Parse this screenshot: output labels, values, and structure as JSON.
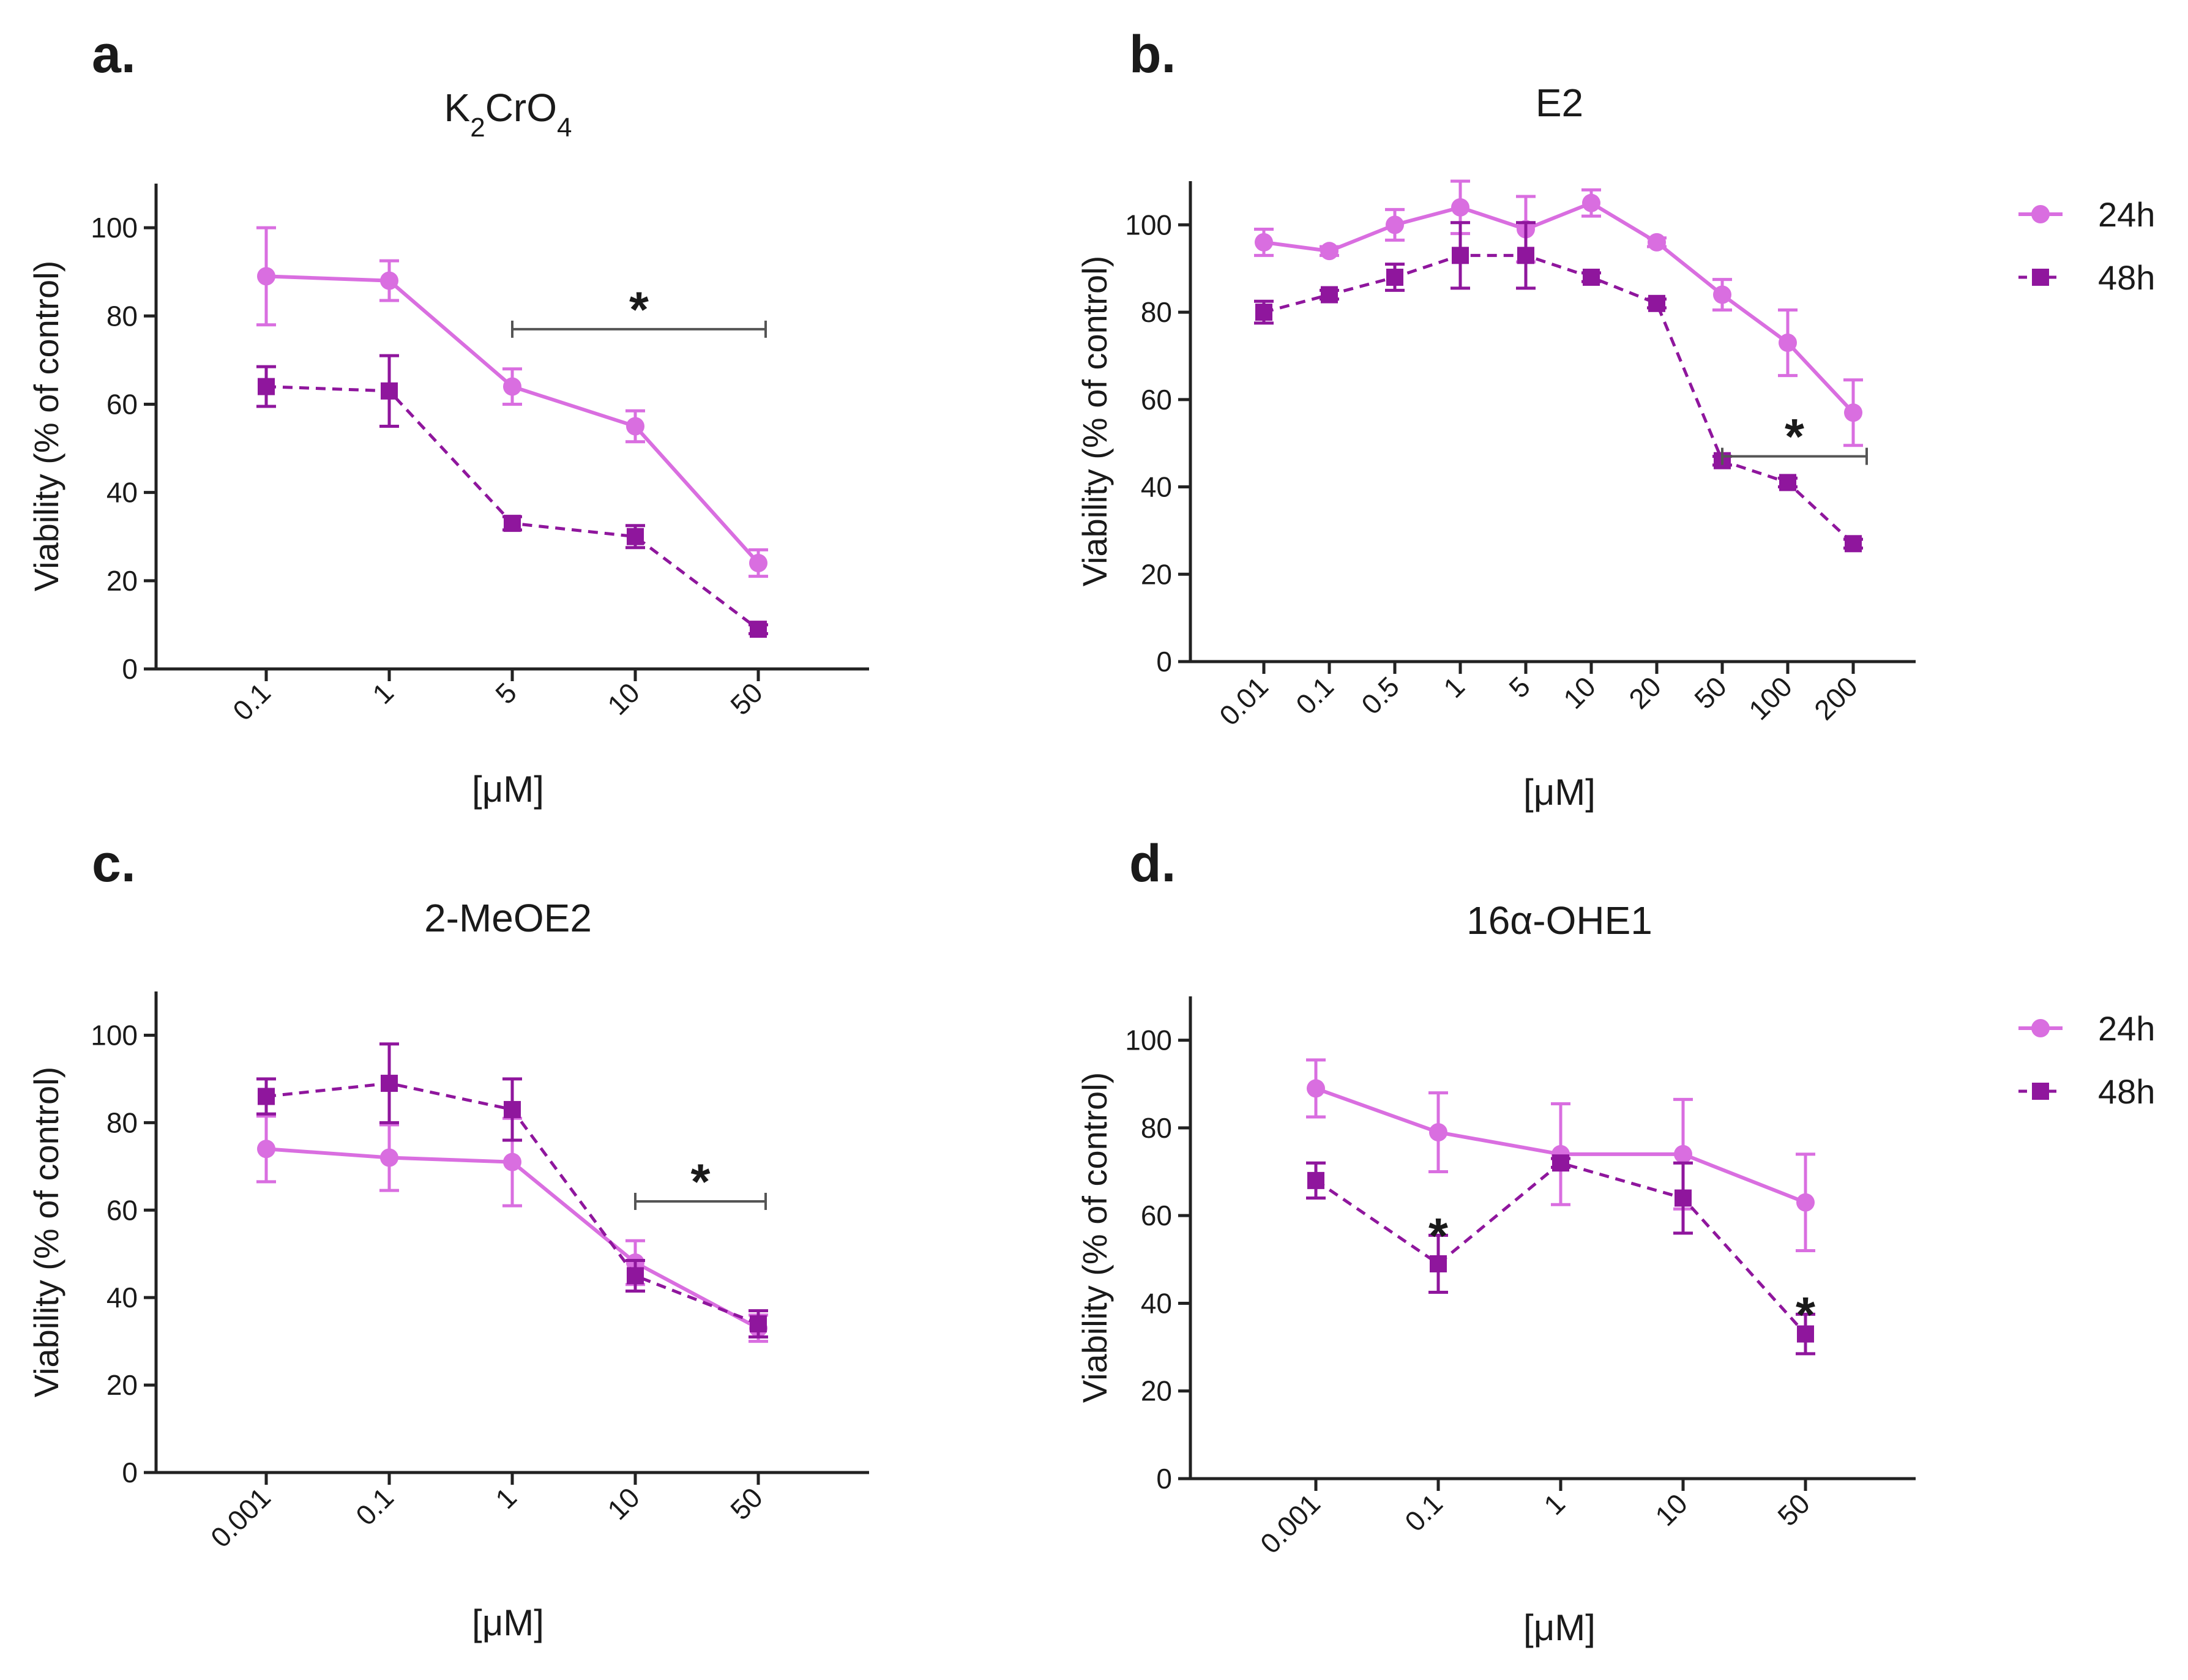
{
  "colors": {
    "h24": "#d96ee0",
    "h48": "#8f169d",
    "axis": "#222222",
    "bracket": "#555555"
  },
  "legend": {
    "h24": "24h",
    "h48": "48h"
  },
  "chart_data": [
    {
      "type": "line",
      "panel_label": "a.",
      "title": "K₂CrO₄",
      "title_parts": {
        "pre": "K",
        "sub1": "2",
        "mid": "CrO",
        "sub2": "4"
      },
      "xlabel": "[μM]",
      "ylabel": "Viability (% of control)",
      "ylim": [
        0,
        110
      ],
      "yticks": [
        0,
        20,
        40,
        60,
        80,
        100
      ],
      "categories": [
        "0.1",
        "1",
        "5",
        "10",
        "50"
      ],
      "series": [
        {
          "name": "24h",
          "values": [
            89,
            88,
            64,
            55,
            24
          ],
          "errors": [
            11,
            4.5,
            4,
            3.5,
            3
          ]
        },
        {
          "name": "48h",
          "values": [
            64,
            63,
            33,
            30,
            9
          ],
          "errors": [
            4.5,
            8,
            1.5,
            2.5,
            1
          ]
        }
      ],
      "significance": [
        {
          "type": "bracket",
          "label": "*",
          "from": "5",
          "to": "50",
          "y": 77
        }
      ]
    },
    {
      "type": "line",
      "panel_label": "b.",
      "title": "E2",
      "xlabel": "[μM]",
      "ylabel": "Viability (% of control)",
      "ylim": [
        0,
        110
      ],
      "yticks": [
        0,
        20,
        40,
        60,
        80,
        100
      ],
      "categories": [
        "0.01",
        "0.1",
        "0.5",
        "1",
        "5",
        "10",
        "20",
        "50",
        "100",
        "200"
      ],
      "series": [
        {
          "name": "24h",
          "values": [
            96,
            94,
            100,
            104,
            99,
            105,
            96,
            84,
            73,
            57
          ],
          "errors": [
            3,
            1,
            3.5,
            6,
            7.5,
            3,
            1,
            3.5,
            7.5,
            7.5
          ]
        },
        {
          "name": "48h",
          "values": [
            80,
            84,
            88,
            93,
            93,
            88,
            82,
            46,
            41,
            27
          ],
          "errors": [
            2.5,
            1,
            3,
            7.5,
            7.5,
            1,
            1,
            1,
            1,
            1
          ]
        }
      ],
      "significance": [
        {
          "type": "bracket",
          "label": "*",
          "from": "50",
          "to": "200",
          "y": 47
        }
      ]
    },
    {
      "type": "line",
      "panel_label": "c.",
      "title": "2-MeOE2",
      "xlabel": "[μM]",
      "ylabel": "Viability (% of control)",
      "ylim": [
        0,
        110
      ],
      "yticks": [
        0,
        20,
        40,
        60,
        80,
        100
      ],
      "categories": [
        "0.001",
        "0.1",
        "1",
        "10",
        "50"
      ],
      "series": [
        {
          "name": "24h",
          "values": [
            74,
            72,
            71,
            48,
            33
          ],
          "errors": [
            7.5,
            7.5,
            10,
            5,
            3
          ]
        },
        {
          "name": "48h",
          "values": [
            86,
            89,
            83,
            45,
            34
          ],
          "errors": [
            4,
            9,
            7,
            3.5,
            3
          ]
        }
      ],
      "significance": [
        {
          "type": "bracket",
          "label": "*",
          "from": "10",
          "to": "50",
          "y": 62
        }
      ]
    },
    {
      "type": "line",
      "panel_label": "d.",
      "title": "16α-OHE1",
      "xlabel": "[μM]",
      "ylabel": "Viability (% of control)",
      "ylim": [
        0,
        110
      ],
      "yticks": [
        0,
        20,
        40,
        60,
        80,
        100
      ],
      "categories": [
        "0.001",
        "0.1",
        "1",
        "10",
        "50"
      ],
      "series": [
        {
          "name": "24h",
          "values": [
            89,
            79,
            74,
            74,
            63
          ],
          "errors": [
            6.5,
            9,
            11.5,
            12.5,
            11
          ]
        },
        {
          "name": "48h",
          "values": [
            68,
            49,
            72,
            64,
            33
          ],
          "errors": [
            4,
            6.5,
            1,
            8,
            4.5
          ]
        }
      ],
      "significance": [
        {
          "type": "star",
          "label": "*",
          "at": "0.1",
          "y": 57
        },
        {
          "type": "star",
          "label": "*",
          "at": "50",
          "y": 39
        }
      ]
    }
  ]
}
